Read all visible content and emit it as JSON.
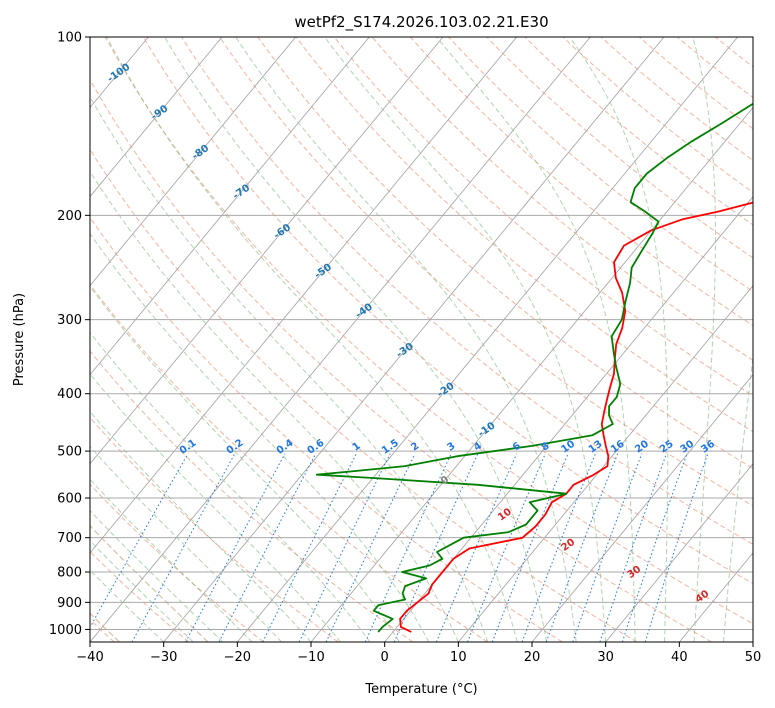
{
  "chart_data": {
    "type": "line",
    "title": "wetPf2_S174.2026.103.02.21.E30",
    "xlabel": "Temperature (°C)",
    "ylabel": "Pressure (hPa)",
    "xlim": [
      -40,
      50
    ],
    "ylim": [
      1050,
      100
    ],
    "yscale": "log",
    "x_ticks": [
      -40,
      -30,
      -20,
      -10,
      0,
      10,
      20,
      30,
      40,
      50
    ],
    "y_ticks": [
      100,
      200,
      300,
      400,
      500,
      600,
      700,
      800,
      900,
      1000
    ],
    "grid": true,
    "colors": {
      "temperature": "#ff0000",
      "dewpoint": "#008000",
      "isotherm": "#a9a9a9",
      "dry_adiabat": "#f08060",
      "moist_adiabat": "#70b070",
      "mixing_ratio": "#1f77e4",
      "theta_w": "#d0b090",
      "label_blue": "#1f77b4",
      "label_red": "#d62728"
    },
    "series": [
      {
        "key": "temperature",
        "pressure": [
          1010,
          990,
          960,
          930,
          900,
          870,
          840,
          800,
          760,
          730,
          700,
          670,
          640,
          610,
          590,
          570,
          550,
          530,
          510,
          490,
          470,
          450,
          430,
          410,
          390,
          370,
          350,
          330,
          310,
          290,
          270,
          255,
          240,
          225,
          212,
          203,
          197,
          188,
          178,
          167,
          155,
          142,
          130,
          120,
          110,
          100
        ],
        "values": [
          2.5,
          0.5,
          -0.5,
          -0.5,
          0,
          0.5,
          0,
          0,
          0,
          1,
          7,
          7.5,
          7.5,
          7,
          8,
          8,
          9.5,
          10.5,
          9.5,
          8,
          6.5,
          5,
          4,
          3,
          2,
          1,
          -0.5,
          -2,
          -3,
          -4.5,
          -7,
          -9.5,
          -11.5,
          -12,
          -10,
          -7,
          -3,
          2,
          8,
          12,
          14.5,
          16,
          18.5,
          21,
          24,
          26.5
        ]
      },
      {
        "key": "dewpoint",
        "pressure": [
          1010,
          990,
          960,
          930,
          910,
          890,
          870,
          845,
          820,
          800,
          780,
          760,
          740,
          720,
          700,
          685,
          665,
          645,
          630,
          610,
          590,
          570,
          555,
          548,
          540,
          530,
          510,
          490,
          470,
          450,
          435,
          420,
          405,
          385,
          360,
          340,
          320,
          300,
          280,
          260,
          245,
          230,
          215,
          205,
          197,
          190,
          180,
          170,
          160,
          150,
          140,
          130,
          120,
          110,
          100
        ],
        "values": [
          -2,
          -2,
          -1.5,
          -5,
          -5,
          -2,
          -3,
          -3.5,
          -1.5,
          -5.5,
          -2.5,
          -1.5,
          -3,
          -2,
          -1,
          4.5,
          6,
          6,
          6,
          4,
          8,
          -5,
          -20,
          -28,
          -23,
          -17,
          -11,
          -2,
          5,
          6.5,
          5,
          4,
          4,
          3,
          0.5,
          -1.5,
          -3.5,
          -4,
          -5.5,
          -7,
          -8.5,
          -9,
          -9.5,
          -10,
          -13,
          -16,
          -17,
          -17,
          -16,
          -14.5,
          -12.5,
          -10.5,
          -8,
          -5,
          -2
        ]
      }
    ],
    "mixing_ratio_labels": [
      "0.1",
      "0.2",
      "0.4",
      "0.6",
      "1",
      "1.5",
      "2",
      "3",
      "4",
      "6",
      "8",
      "10",
      "13",
      "16",
      "20",
      "25",
      "30",
      "36"
    ],
    "moist_adiabat_labels": [
      "-100",
      "-90",
      "-80",
      "-70",
      "-60",
      "-50",
      "-40",
      "-30",
      "-20",
      "-10",
      "0",
      "10",
      "20",
      "30",
      "40"
    ]
  }
}
